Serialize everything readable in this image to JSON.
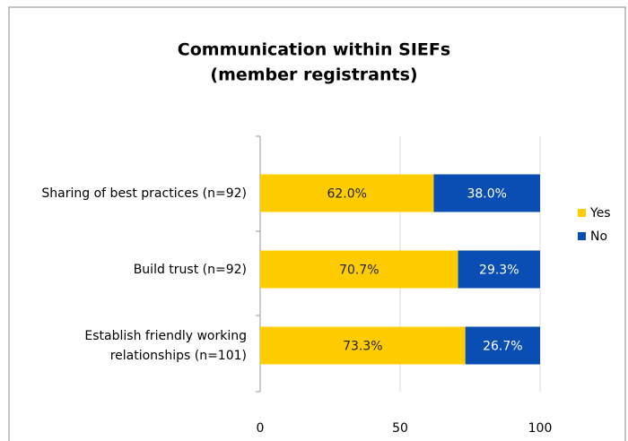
{
  "chart_data": {
    "type": "stacked_bar_horizontal",
    "title": "Communication within SIEFs",
    "subtitle": "(member registrants)",
    "categories": [
      "Sharing of best practices (n=92)",
      "Build trust (n=92)",
      "Establish friendly working relationships (n=101)"
    ],
    "series": [
      {
        "name": "Yes",
        "color": "#ffcc00",
        "values": [
          62.0,
          70.7,
          73.3
        ],
        "value_labels": [
          "62.0%",
          "70.7%",
          "73.3%"
        ]
      },
      {
        "name": "No",
        "color": "#0a4db3",
        "values": [
          38.0,
          29.3,
          26.7
        ],
        "value_labels": [
          "38.0%",
          "29.3%",
          "26.7%"
        ]
      }
    ],
    "xlim": [
      0,
      100
    ],
    "xticks": [
      0,
      50,
      100
    ],
    "grid": true,
    "legend": "right"
  }
}
